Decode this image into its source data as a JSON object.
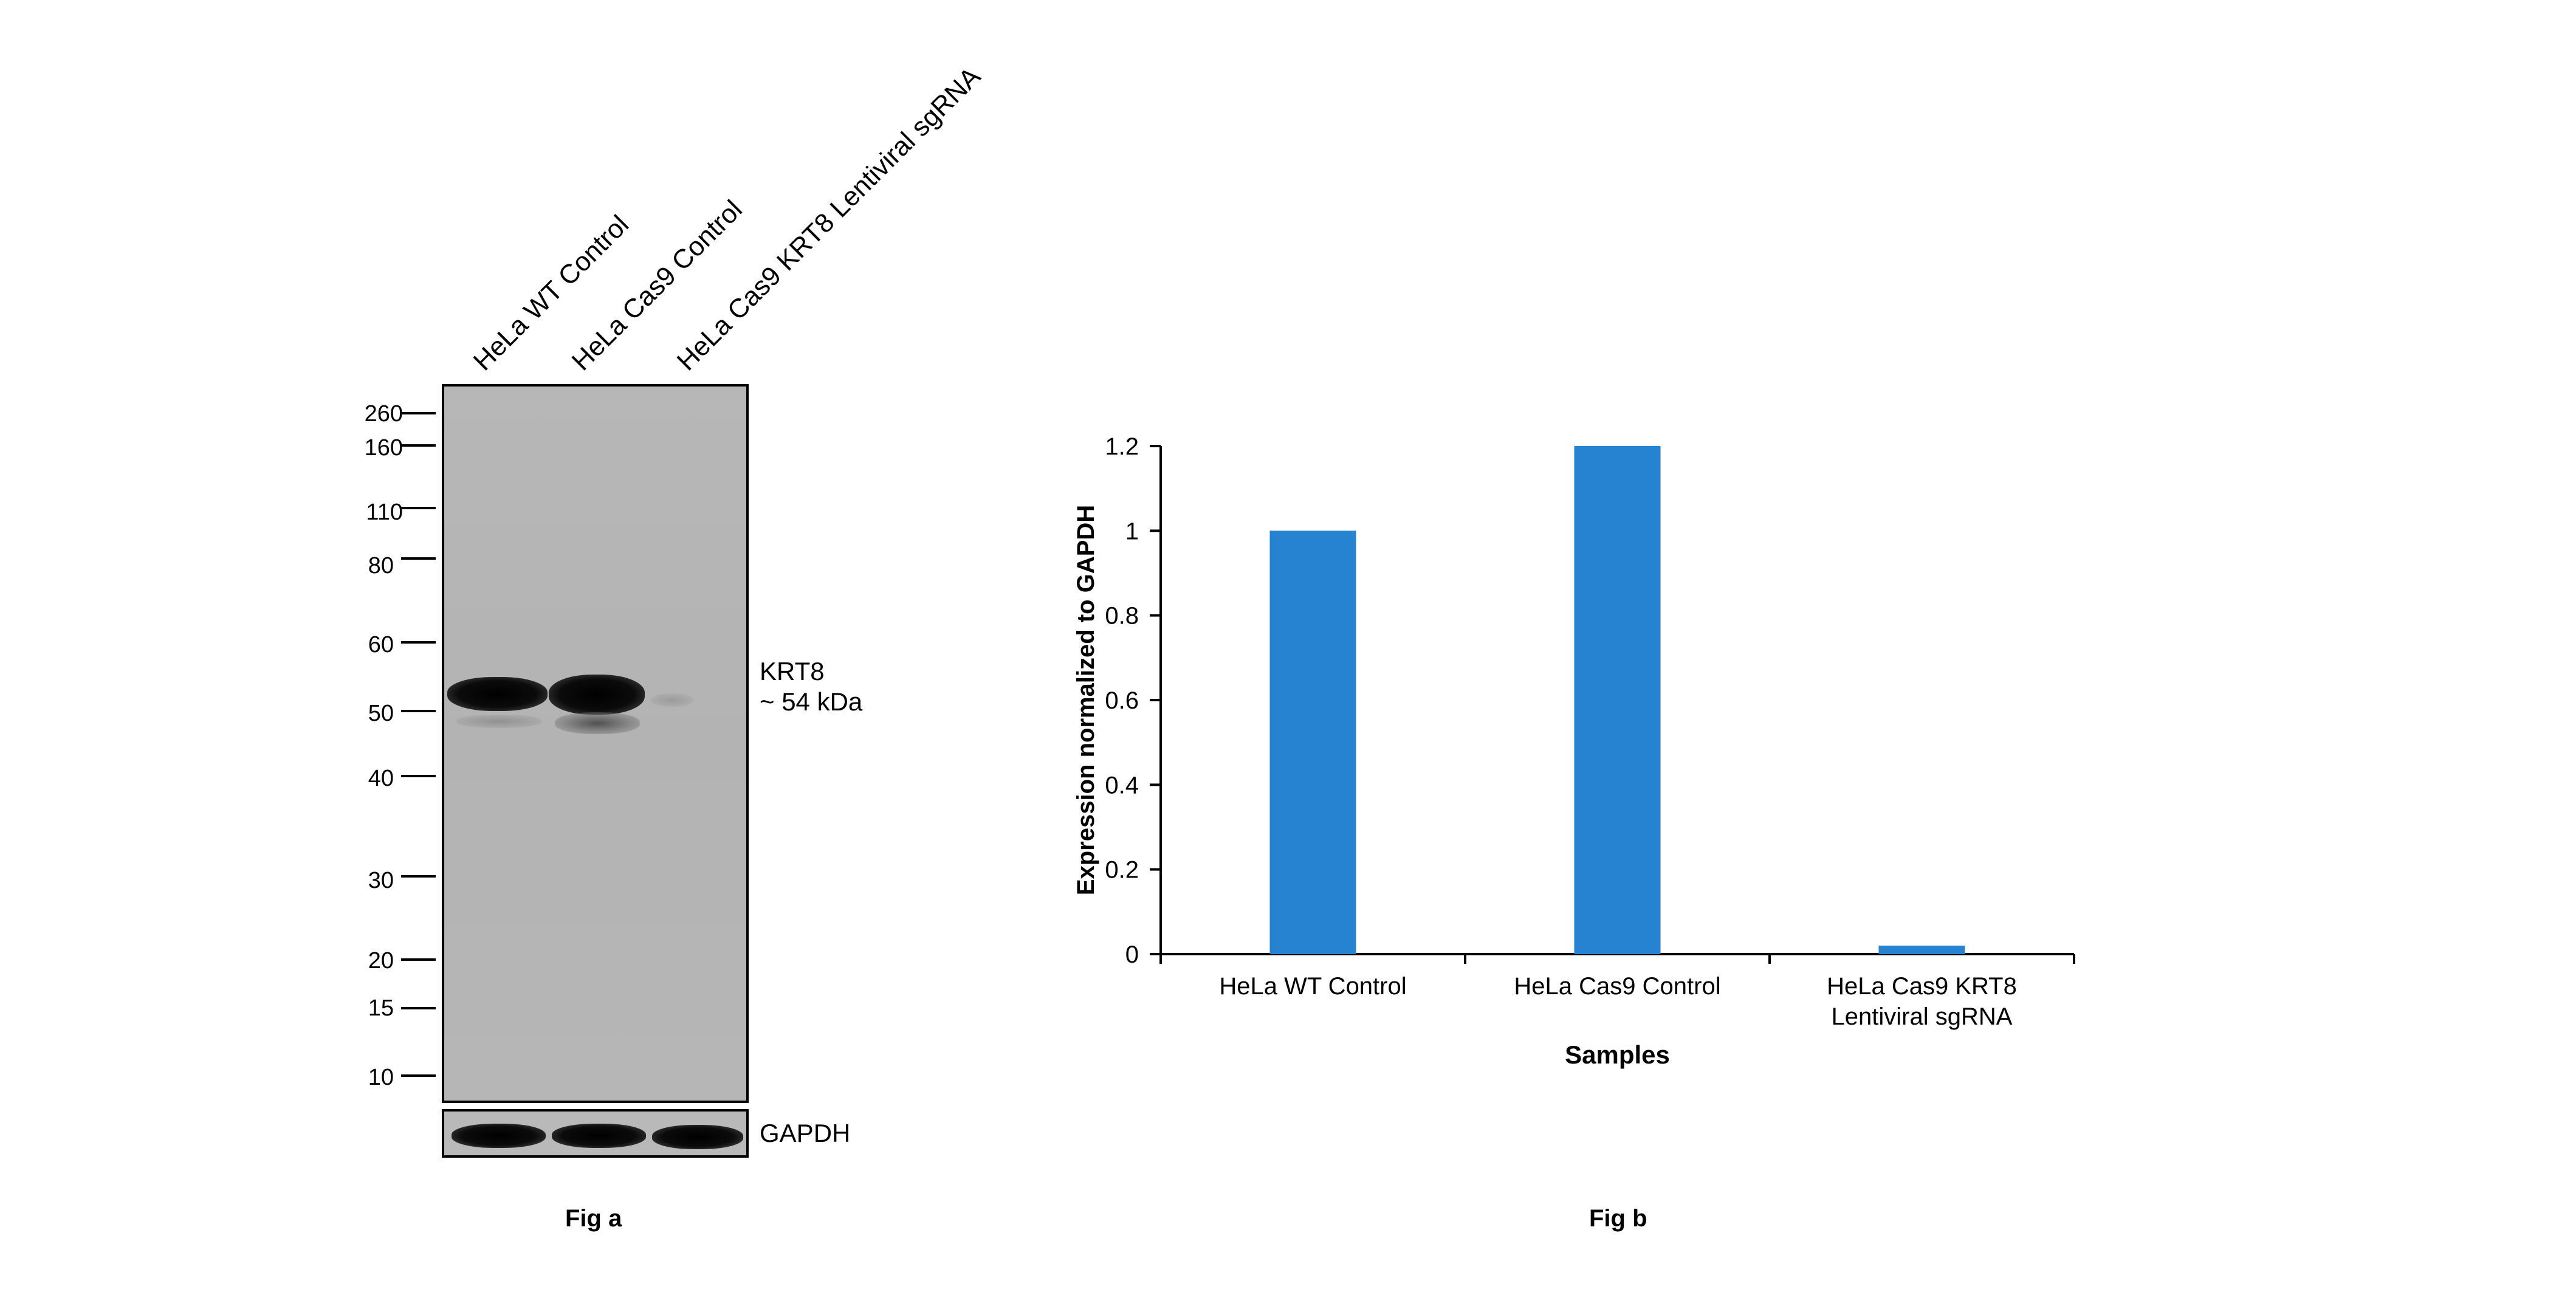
{
  "fig_a": {
    "lane_labels": [
      "HeLa WT Control",
      "HeLa Cas9 Control",
      "HeLa Cas9 KRT8 Lentiviral sgRNA"
    ],
    "mw_markers": [
      "260",
      "160",
      "110",
      "80",
      "60",
      "50",
      "40",
      "30",
      "20",
      "15",
      "10"
    ],
    "band_label_1": "KRT8",
    "band_label_2": "~ 54 kDa",
    "loading_control": "GAPDH",
    "caption": "Fig a"
  },
  "fig_b": {
    "caption": "Fig b"
  },
  "chart_data": {
    "type": "bar",
    "categories": [
      "HeLa WT Control",
      "HeLa Cas9 Control",
      "HeLa Cas9 KRT8 Lentiviral sgRNA"
    ],
    "category_lines": [
      [
        "HeLa WT Control"
      ],
      [
        "HeLa Cas9 Control"
      ],
      [
        "HeLa Cas9 KRT8",
        "Lentiviral sgRNA"
      ]
    ],
    "values": [
      1.0,
      1.2,
      0.02
    ],
    "xlabel": "Samples",
    "ylabel": "Expression normalized to GAPDH",
    "ylim": [
      0,
      1.2
    ],
    "yticks": [
      "0",
      "0.2",
      "0.4",
      "0.6",
      "0.8",
      "1",
      "1.2"
    ],
    "bar_color": "#2683d2",
    "grid": false,
    "legend": "none"
  }
}
